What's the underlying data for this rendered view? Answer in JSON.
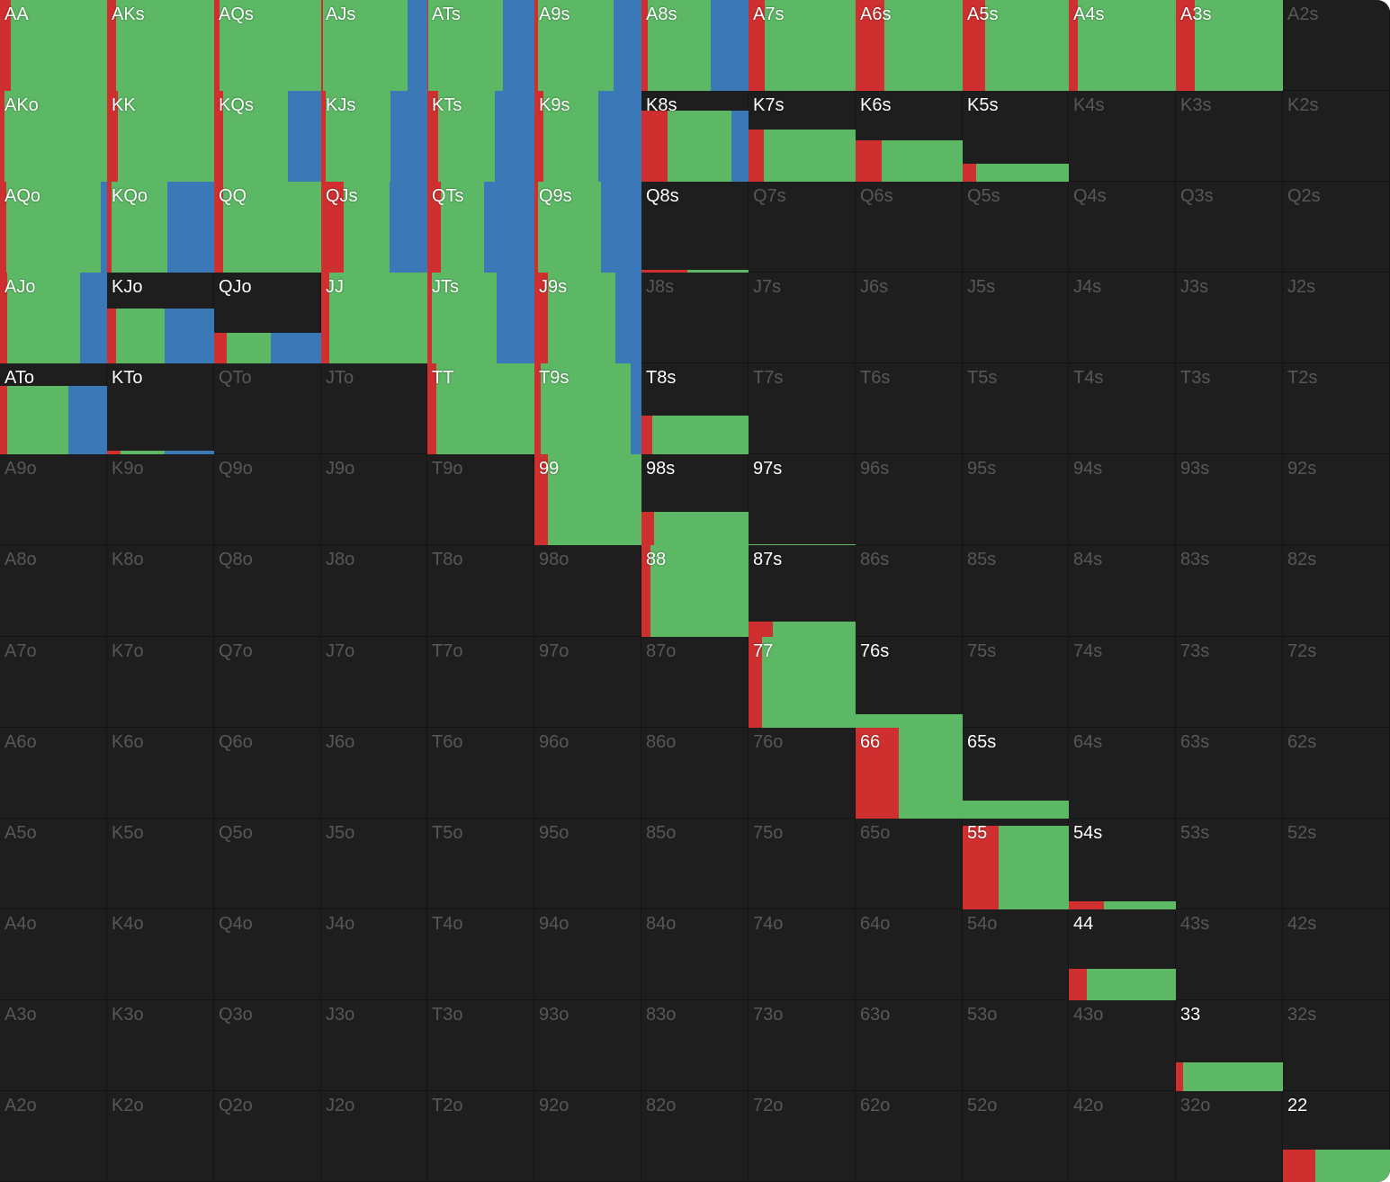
{
  "colors": [
    "#cf2f2f",
    "#5cb864",
    "#3a78b8"
  ],
  "grid": {
    "rows": [
      [
        {
          "label": "AA",
          "freq": 100,
          "mix": [
            10,
            90,
            0
          ]
        },
        {
          "label": "AKs",
          "freq": 100,
          "mix": [
            8,
            92,
            0
          ]
        },
        {
          "label": "AQs",
          "freq": 100,
          "mix": [
            5,
            95,
            0
          ]
        },
        {
          "label": "AJs",
          "freq": 100,
          "mix": [
            2,
            79,
            19
          ]
        },
        {
          "label": "ATs",
          "freq": 100,
          "mix": [
            1,
            70,
            29
          ]
        },
        {
          "label": "A9s",
          "freq": 100,
          "mix": [
            3,
            71,
            26
          ]
        },
        {
          "label": "A8s",
          "freq": 100,
          "mix": [
            6,
            59,
            35
          ]
        },
        {
          "label": "A7s",
          "freq": 100,
          "mix": [
            15,
            85,
            0
          ]
        },
        {
          "label": "A6s",
          "freq": 100,
          "mix": [
            27,
            73,
            0
          ]
        },
        {
          "label": "A5s",
          "freq": 100,
          "mix": [
            21,
            79,
            0
          ]
        },
        {
          "label": "A4s",
          "freq": 100,
          "mix": [
            8,
            92,
            0
          ]
        },
        {
          "label": "A3s",
          "freq": 100,
          "mix": [
            18,
            82,
            0
          ]
        },
        {
          "label": "A2s"
        }
      ],
      [
        {
          "label": "AKo",
          "freq": 100,
          "mix": [
            4,
            96,
            0
          ]
        },
        {
          "label": "KK",
          "freq": 100,
          "mix": [
            10,
            90,
            0
          ]
        },
        {
          "label": "KQs",
          "freq": 100,
          "mix": [
            8,
            61,
            31
          ]
        },
        {
          "label": "KJs",
          "freq": 100,
          "mix": [
            4,
            61,
            35
          ]
        },
        {
          "label": "KTs",
          "freq": 100,
          "mix": [
            10,
            53,
            37
          ]
        },
        {
          "label": "K9s",
          "freq": 100,
          "mix": [
            8,
            52,
            40
          ]
        },
        {
          "label": "K8s",
          "freq": 78,
          "mix": [
            24,
            60,
            16
          ]
        },
        {
          "label": "K7s",
          "freq": 57,
          "mix": [
            14,
            86,
            0
          ]
        },
        {
          "label": "K6s",
          "freq": 46,
          "mix": [
            24,
            76,
            0
          ]
        },
        {
          "label": "K5s",
          "freq": 20,
          "mix": [
            13,
            87,
            0
          ]
        },
        {
          "label": "K4s"
        },
        {
          "label": "K3s"
        },
        {
          "label": "K2s"
        }
      ],
      [
        {
          "label": "AQo",
          "freq": 100,
          "mix": [
            6,
            88,
            6
          ]
        },
        {
          "label": "KQo",
          "freq": 100,
          "mix": [
            4,
            52,
            44
          ]
        },
        {
          "label": "QQ",
          "freq": 100,
          "mix": [
            8,
            92,
            0
          ]
        },
        {
          "label": "QJs",
          "freq": 100,
          "mix": [
            21,
            43,
            36
          ]
        },
        {
          "label": "QTs",
          "freq": 100,
          "mix": [
            13,
            40,
            47
          ]
        },
        {
          "label": "Q9s",
          "freq": 100,
          "mix": [
            3,
            59,
            38
          ]
        },
        {
          "label": "Q8s",
          "freq": 3,
          "mix": [
            43,
            57,
            0
          ]
        },
        {
          "label": "Q7s"
        },
        {
          "label": "Q6s"
        },
        {
          "label": "Q5s"
        },
        {
          "label": "Q4s"
        },
        {
          "label": "Q3s"
        },
        {
          "label": "Q2s"
        }
      ],
      [
        {
          "label": "AJo",
          "freq": 100,
          "mix": [
            7,
            68,
            25
          ]
        },
        {
          "label": "KJo",
          "freq": 60,
          "mix": [
            8,
            46,
            46
          ]
        },
        {
          "label": "QJo",
          "freq": 34,
          "mix": [
            12,
            41,
            47
          ]
        },
        {
          "label": "JJ",
          "freq": 100,
          "mix": [
            8,
            92,
            0
          ]
        },
        {
          "label": "JTs",
          "freq": 100,
          "mix": [
            4,
            61,
            35
          ]
        },
        {
          "label": "J9s",
          "freq": 100,
          "mix": [
            13,
            63,
            24
          ]
        },
        {
          "label": "J8s"
        },
        {
          "label": "J7s"
        },
        {
          "label": "J6s"
        },
        {
          "label": "J5s"
        },
        {
          "label": "J4s"
        },
        {
          "label": "J3s"
        },
        {
          "label": "J2s"
        }
      ],
      [
        {
          "label": "ATo",
          "freq": 75,
          "mix": [
            7,
            57,
            36
          ]
        },
        {
          "label": "KTo",
          "freq": 4,
          "mix": [
            13,
            41,
            46
          ]
        },
        {
          "label": "QTo"
        },
        {
          "label": "JTo"
        },
        {
          "label": "TT",
          "freq": 100,
          "mix": [
            8,
            92,
            0
          ]
        },
        {
          "label": "T9s",
          "freq": 100,
          "mix": [
            6,
            84,
            10
          ]
        },
        {
          "label": "T8s",
          "freq": 43,
          "mix": [
            10,
            90,
            0
          ]
        },
        {
          "label": "T7s"
        },
        {
          "label": "T6s"
        },
        {
          "label": "T5s"
        },
        {
          "label": "T4s"
        },
        {
          "label": "T3s"
        },
        {
          "label": "T2s"
        }
      ],
      [
        {
          "label": "A9o"
        },
        {
          "label": "K9o"
        },
        {
          "label": "Q9o"
        },
        {
          "label": "J9o"
        },
        {
          "label": "T9o"
        },
        {
          "label": "99",
          "freq": 100,
          "mix": [
            13,
            87,
            0
          ]
        },
        {
          "label": "98s",
          "freq": 37,
          "mix": [
            12,
            88,
            0
          ]
        },
        {
          "label": "97s",
          "freq": 1,
          "mix": [
            0,
            100,
            0
          ]
        },
        {
          "label": "96s"
        },
        {
          "label": "95s"
        },
        {
          "label": "94s"
        },
        {
          "label": "93s"
        },
        {
          "label": "92s"
        }
      ],
      [
        {
          "label": "A8o"
        },
        {
          "label": "K8o"
        },
        {
          "label": "Q8o"
        },
        {
          "label": "J8o"
        },
        {
          "label": "T8o"
        },
        {
          "label": "98o"
        },
        {
          "label": "88",
          "freq": 100,
          "mix": [
            8,
            92,
            0
          ]
        },
        {
          "label": "87s",
          "freq": 17,
          "mix": [
            23,
            77,
            0
          ]
        },
        {
          "label": "86s"
        },
        {
          "label": "85s"
        },
        {
          "label": "84s"
        },
        {
          "label": "83s"
        },
        {
          "label": "82s"
        }
      ],
      [
        {
          "label": "A7o"
        },
        {
          "label": "K7o"
        },
        {
          "label": "Q7o"
        },
        {
          "label": "J7o"
        },
        {
          "label": "T7o"
        },
        {
          "label": "97o"
        },
        {
          "label": "87o"
        },
        {
          "label": "77",
          "freq": 100,
          "mix": [
            13,
            87,
            0
          ]
        },
        {
          "label": "76s",
          "freq": 15,
          "mix": [
            0,
            100,
            0
          ]
        },
        {
          "label": "75s"
        },
        {
          "label": "74s"
        },
        {
          "label": "73s"
        },
        {
          "label": "72s"
        }
      ],
      [
        {
          "label": "A6o"
        },
        {
          "label": "K6o"
        },
        {
          "label": "Q6o"
        },
        {
          "label": "J6o"
        },
        {
          "label": "T6o"
        },
        {
          "label": "96o"
        },
        {
          "label": "86o"
        },
        {
          "label": "76o"
        },
        {
          "label": "66",
          "freq": 100,
          "mix": [
            40,
            60,
            0
          ]
        },
        {
          "label": "65s",
          "freq": 20,
          "mix": [
            0,
            100,
            0
          ]
        },
        {
          "label": "64s"
        },
        {
          "label": "63s"
        },
        {
          "label": "62s"
        }
      ],
      [
        {
          "label": "A5o"
        },
        {
          "label": "K5o"
        },
        {
          "label": "Q5o"
        },
        {
          "label": "J5o"
        },
        {
          "label": "T5o"
        },
        {
          "label": "95o"
        },
        {
          "label": "85o"
        },
        {
          "label": "75o"
        },
        {
          "label": "65o"
        },
        {
          "label": "55",
          "freq": 92,
          "mix": [
            34,
            66,
            0
          ]
        },
        {
          "label": "54s",
          "freq": 9,
          "mix": [
            33,
            67,
            0
          ]
        },
        {
          "label": "53s"
        },
        {
          "label": "52s"
        }
      ],
      [
        {
          "label": "A4o"
        },
        {
          "label": "K4o"
        },
        {
          "label": "Q4o"
        },
        {
          "label": "J4o"
        },
        {
          "label": "T4o"
        },
        {
          "label": "94o"
        },
        {
          "label": "84o"
        },
        {
          "label": "74o"
        },
        {
          "label": "64o"
        },
        {
          "label": "54o"
        },
        {
          "label": "44",
          "freq": 35,
          "mix": [
            17,
            83,
            0
          ]
        },
        {
          "label": "43s"
        },
        {
          "label": "42s"
        }
      ],
      [
        {
          "label": "A3o"
        },
        {
          "label": "K3o"
        },
        {
          "label": "Q3o"
        },
        {
          "label": "J3o"
        },
        {
          "label": "T3o"
        },
        {
          "label": "93o"
        },
        {
          "label": "83o"
        },
        {
          "label": "73o"
        },
        {
          "label": "63o"
        },
        {
          "label": "53o"
        },
        {
          "label": "43o"
        },
        {
          "label": "33",
          "freq": 32,
          "mix": [
            7,
            93,
            0
          ]
        },
        {
          "label": "32s"
        }
      ],
      [
        {
          "label": "A2o"
        },
        {
          "label": "K2o"
        },
        {
          "label": "Q2o"
        },
        {
          "label": "J2o"
        },
        {
          "label": "T2o"
        },
        {
          "label": "92o"
        },
        {
          "label": "82o"
        },
        {
          "label": "72o"
        },
        {
          "label": "62o"
        },
        {
          "label": "52o"
        },
        {
          "label": "42o"
        },
        {
          "label": "32o"
        },
        {
          "label": "22",
          "freq": 36,
          "mix": [
            30,
            70,
            0
          ]
        }
      ]
    ]
  }
}
